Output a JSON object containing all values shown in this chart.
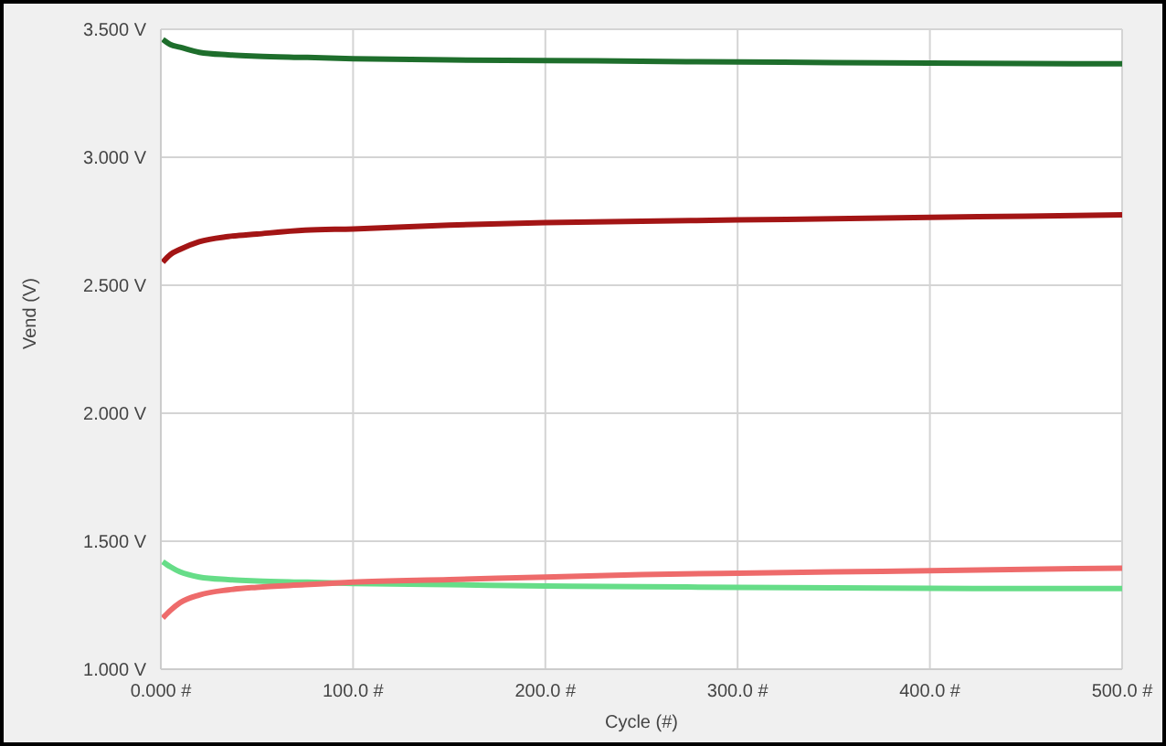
{
  "chart_data": {
    "type": "line",
    "xlabel": "Cycle (#)",
    "ylabel": "Vend (V)",
    "xlim": [
      0,
      500
    ],
    "xticks": [
      {
        "value": 0,
        "label": "0.000 #"
      },
      {
        "value": 100,
        "label": "100.0 #"
      },
      {
        "value": 200,
        "label": "200.0 #"
      },
      {
        "value": 300,
        "label": "300.0 #"
      },
      {
        "value": 400,
        "label": "400.0 #"
      },
      {
        "value": 500,
        "label": "500.0 #"
      }
    ],
    "ylim": [
      1,
      3.5
    ],
    "yticks": [
      {
        "value": 1,
        "label": "1.000 V"
      },
      {
        "value": 1.5,
        "label": "1.500 V"
      },
      {
        "value": 2,
        "label": "2.000 V"
      },
      {
        "value": 2.5,
        "label": "2.500 V"
      },
      {
        "value": 3,
        "label": "3.000 V"
      },
      {
        "value": 3.5,
        "label": "3.500 V"
      }
    ],
    "grid": true,
    "marker": "none",
    "line_style": "solid",
    "series": [
      {
        "color": "#1e6e2c",
        "x": [
          1,
          5,
          10,
          20,
          35,
          50,
          75,
          100,
          150,
          200,
          250,
          300,
          350,
          400,
          450,
          500
        ],
        "values": [
          3.46,
          3.44,
          3.43,
          3.41,
          3.4,
          3.395,
          3.39,
          3.385,
          3.38,
          3.378,
          3.375,
          3.372,
          3.37,
          3.368,
          3.366,
          3.365
        ]
      },
      {
        "color": "#a31515",
        "x": [
          1,
          5,
          10,
          20,
          35,
          50,
          75,
          100,
          150,
          200,
          250,
          300,
          350,
          400,
          450,
          500
        ],
        "values": [
          2.59,
          2.62,
          2.64,
          2.67,
          2.69,
          2.7,
          2.715,
          2.72,
          2.735,
          2.745,
          2.75,
          2.755,
          2.76,
          2.765,
          2.77,
          2.775
        ]
      },
      {
        "color": "#66dd88",
        "x": [
          1,
          5,
          10,
          20,
          35,
          50,
          75,
          100,
          150,
          200,
          250,
          300,
          350,
          400,
          450,
          500
        ],
        "values": [
          1.42,
          1.4,
          1.38,
          1.36,
          1.35,
          1.345,
          1.34,
          1.335,
          1.33,
          1.325,
          1.322,
          1.32,
          1.318,
          1.316,
          1.315,
          1.315
        ]
      },
      {
        "color": "#ee6b6b",
        "x": [
          1,
          5,
          10,
          20,
          35,
          50,
          75,
          100,
          150,
          200,
          250,
          300,
          350,
          400,
          450,
          500
        ],
        "values": [
          1.2,
          1.23,
          1.26,
          1.29,
          1.31,
          1.32,
          1.33,
          1.34,
          1.35,
          1.36,
          1.37,
          1.375,
          1.38,
          1.385,
          1.39,
          1.395
        ]
      }
    ]
  }
}
